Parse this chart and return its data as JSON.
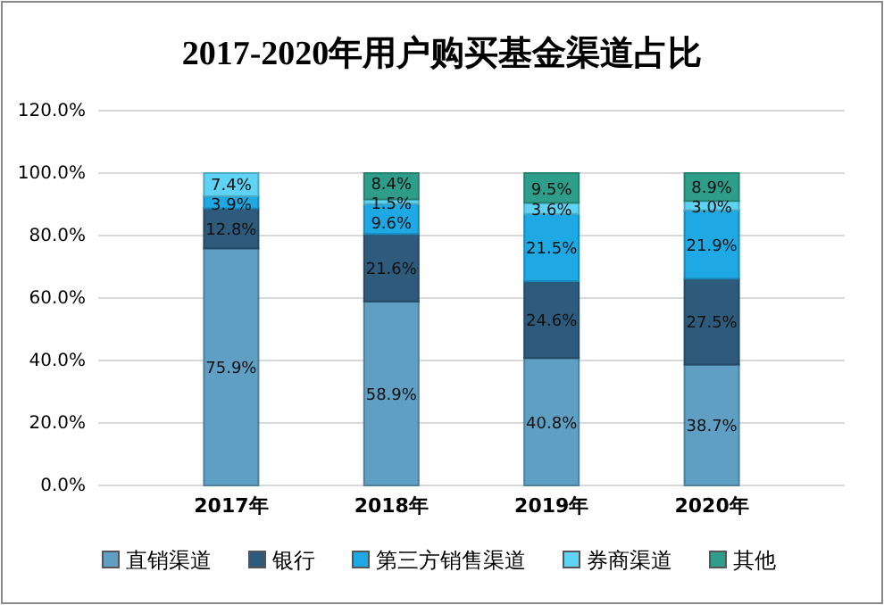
{
  "chart_data": {
    "type": "bar",
    "title": "2017-2020年用户购买基金渠道占比",
    "stacked": true,
    "categories": [
      "2017年",
      "2018年",
      "2019年",
      "2020年"
    ],
    "series": [
      {
        "name": "直销渠道",
        "color": "#5f9fc4",
        "values": [
          75.9,
          58.9,
          40.8,
          38.7
        ],
        "value_labels": [
          "75.9%",
          "58.9%",
          "40.8%",
          "38.7%"
        ]
      },
      {
        "name": "银行",
        "color": "#2e5a7c",
        "values": [
          12.8,
          21.6,
          24.6,
          27.5
        ],
        "value_labels": [
          "12.8%",
          "21.6%",
          "24.6%",
          "27.5%"
        ]
      },
      {
        "name": "第三方销售渠道",
        "color": "#1ea8e4",
        "values": [
          3.9,
          9.6,
          21.5,
          21.9
        ],
        "value_labels": [
          "3.9%",
          "9.6%",
          "21.5%",
          "21.9%"
        ]
      },
      {
        "name": "券商渠道",
        "color": "#5ed3f3",
        "values": [
          7.4,
          1.5,
          3.6,
          3.0
        ],
        "value_labels": [
          "7.4%",
          "1.5%",
          "3.6%",
          "3.0%"
        ]
      },
      {
        "name": "其他",
        "color": "#2e9e8a",
        "values": [
          0,
          8.4,
          9.5,
          8.9
        ],
        "value_labels": [
          null,
          "8.4%",
          "9.5%",
          "8.9%"
        ]
      }
    ],
    "ylim": [
      0,
      120
    ],
    "yticks": [
      {
        "value": 0,
        "label": "0.0%"
      },
      {
        "value": 20,
        "label": "20.0%"
      },
      {
        "value": 40,
        "label": "40.0%"
      },
      {
        "value": 60,
        "label": "60.0%"
      },
      {
        "value": 80,
        "label": "80.0%"
      },
      {
        "value": 100,
        "label": "100.0%"
      },
      {
        "value": 120,
        "label": "120.0%"
      }
    ],
    "grid": "y",
    "legend": "bottom"
  }
}
